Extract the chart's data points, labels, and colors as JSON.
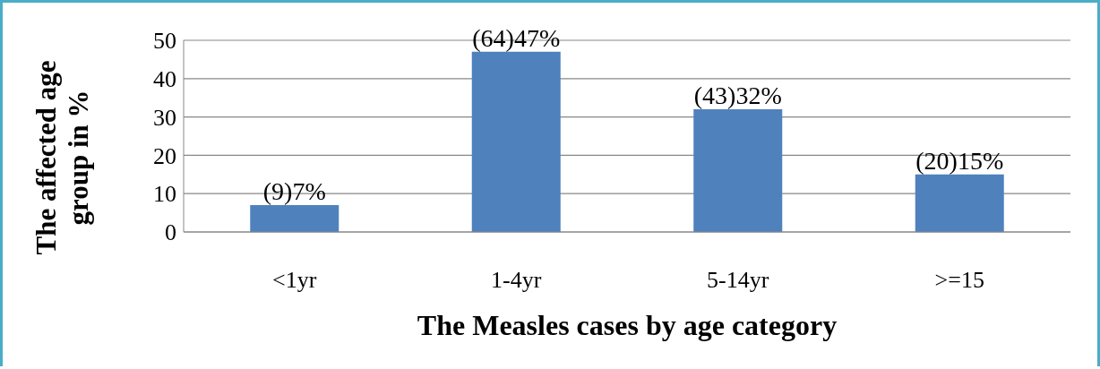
{
  "chart_data": {
    "type": "bar",
    "xlabel": "The Measles cases by age category",
    "ylabel": "The affected age group in %",
    "categories": [
      "<1yr",
      "1-4yr",
      "5-14yr",
      ">=15"
    ],
    "values": [
      7,
      47,
      32,
      15
    ],
    "value_labels": [
      "(9)7%",
      "(64)47%",
      "(43)32%",
      "(20)15%"
    ],
    "color": "#4f81bd",
    "ylim": [
      0,
      50
    ],
    "yticks": [
      0,
      10,
      20,
      30,
      40,
      50
    ],
    "grid": "y"
  }
}
